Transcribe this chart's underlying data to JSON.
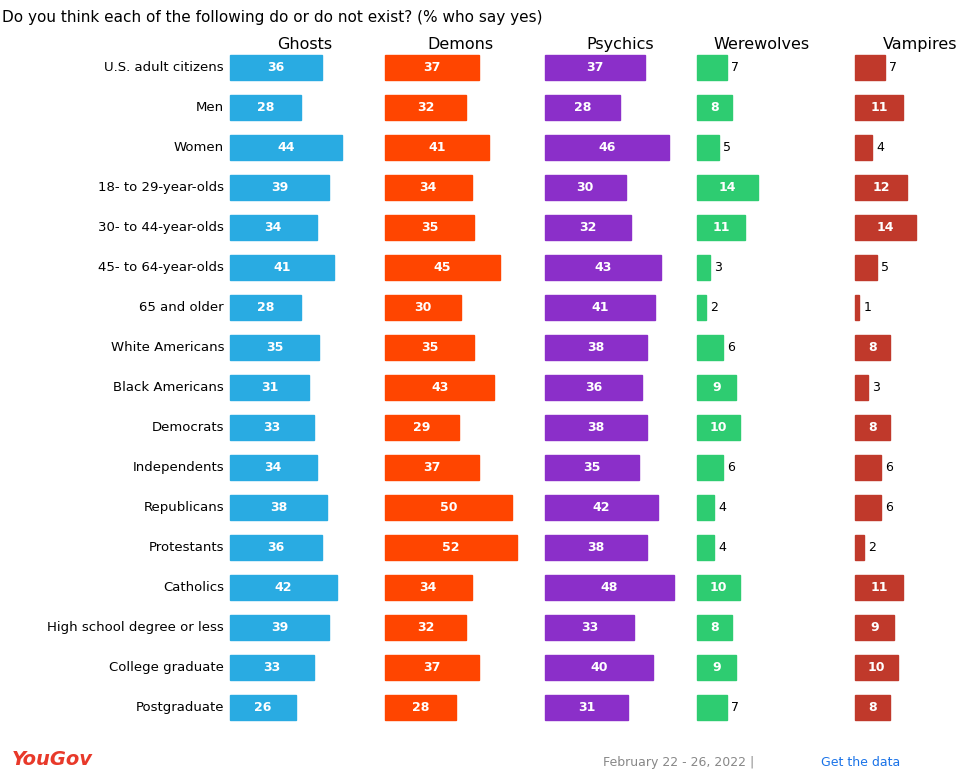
{
  "title": "Do you think each of the following do or do not exist? (% who say yes)",
  "categories": [
    "U.S. adult citizens",
    "Men",
    "Women",
    "18- to 29-year-olds",
    "30- to 44-year-olds",
    "45- to 64-year-olds",
    "65 and older",
    "White Americans",
    "Black Americans",
    "Democrats",
    "Independents",
    "Republicans",
    "Protestants",
    "Catholics",
    "High school degree or less",
    "College graduate",
    "Postgraduate"
  ],
  "ghosts": [
    36,
    28,
    44,
    39,
    34,
    41,
    28,
    35,
    31,
    33,
    34,
    38,
    36,
    42,
    39,
    33,
    26
  ],
  "demons": [
    37,
    32,
    41,
    34,
    35,
    45,
    30,
    35,
    43,
    29,
    37,
    50,
    52,
    34,
    32,
    37,
    28
  ],
  "psychics": [
    37,
    28,
    46,
    30,
    32,
    43,
    41,
    38,
    36,
    38,
    35,
    42,
    38,
    48,
    33,
    40,
    31
  ],
  "werewolves": [
    7,
    8,
    5,
    14,
    11,
    3,
    2,
    6,
    9,
    10,
    6,
    4,
    4,
    10,
    8,
    9,
    7
  ],
  "vampires": [
    7,
    11,
    4,
    12,
    14,
    5,
    1,
    8,
    3,
    8,
    6,
    6,
    2,
    11,
    9,
    10,
    8
  ],
  "ghost_color": "#29ABE2",
  "demon_color": "#FF4500",
  "psychic_color": "#8B2FC9",
  "werewolf_color": "#2ECC71",
  "vampire_color": "#C0392B",
  "col_headers": [
    "Ghosts",
    "Demons",
    "Psychics",
    "Werewolves",
    "Vampires"
  ],
  "footer_left": "YouGov",
  "background_color": "#ffffff",
  "label_inside_threshold": 8
}
